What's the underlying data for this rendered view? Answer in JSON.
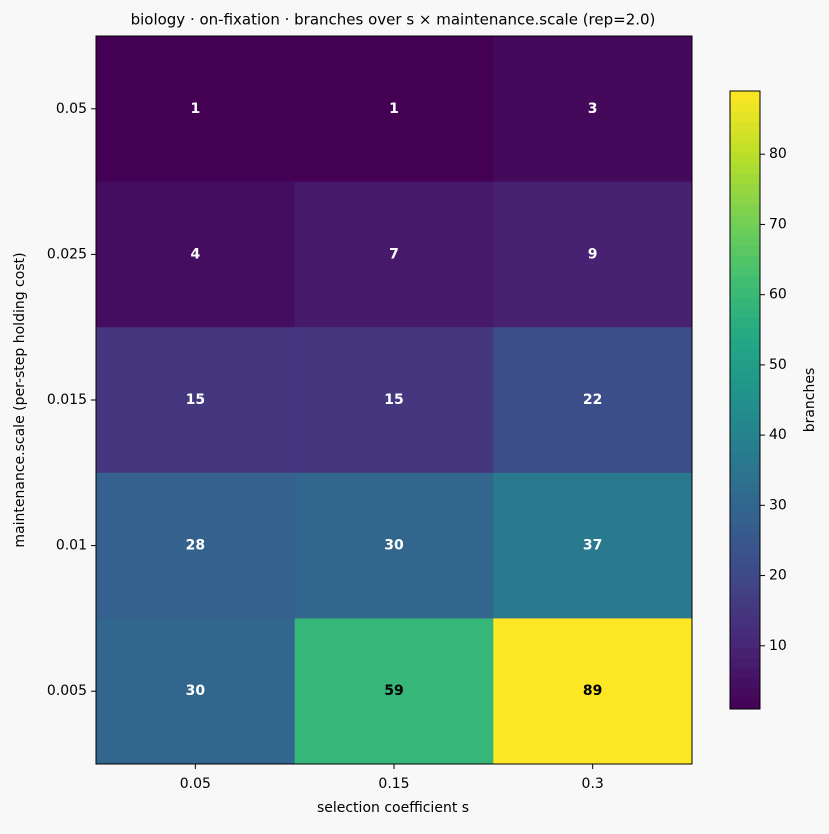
{
  "chart_data": {
    "type": "heatmap",
    "title": "biology · on-fixation · branches over s × maintenance.scale (rep=2.0)",
    "xlabel": "selection coefficient s",
    "ylabel": "maintenance.scale (per-step holding cost)",
    "x_categories": [
      "0.05",
      "0.15",
      "0.3"
    ],
    "y_categories": [
      "0.05",
      "0.025",
      "0.015",
      "0.01",
      "0.005"
    ],
    "values": [
      [
        1,
        1,
        3
      ],
      [
        4,
        7,
        9
      ],
      [
        15,
        15,
        22
      ],
      [
        28,
        30,
        37
      ],
      [
        30,
        59,
        89
      ]
    ],
    "colormap": "viridis",
    "colorbar_label": "branches",
    "clim": [
      1,
      89
    ],
    "colorbar_ticks": [
      10,
      20,
      30,
      40,
      50,
      60,
      70,
      80
    ]
  }
}
